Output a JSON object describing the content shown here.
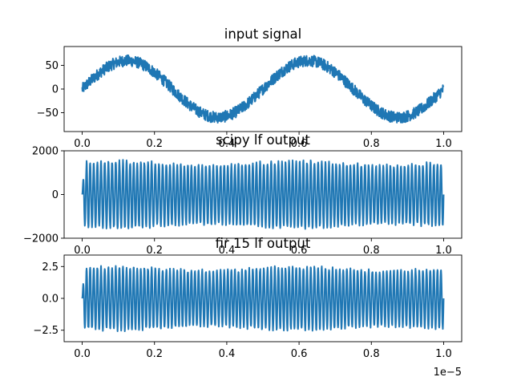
{
  "figure": {
    "background": "#ffffff",
    "line_color": "#1f77b4"
  },
  "chart_data": [
    {
      "type": "line",
      "title": "input signal",
      "xlim": [
        -2e-07,
        1.0222e-06
      ],
      "ylim": [
        -90,
        90
      ],
      "xticks": [
        0.0,
        0.2,
        0.4,
        0.6,
        0.8,
        1.0
      ],
      "xtick_labels": [
        "0.0",
        "0.2",
        "0.4",
        "0.6",
        "0.8",
        "1.0"
      ],
      "yticks": [
        -50,
        0,
        50
      ],
      "ytick_labels": [
        "−50",
        "0",
        "50"
      ],
      "x_scale_label": "",
      "series": [
        {
          "signal": "noisy_sine",
          "cycles": 2,
          "amplitude": 60,
          "noise_amplitude": 20,
          "x_range_scaled": [
            0.0,
            1.0
          ]
        }
      ]
    },
    {
      "type": "line",
      "title": "scipy lf output",
      "ylim": [
        -2000,
        2000
      ],
      "xticks": [
        0.0,
        0.2,
        0.4,
        0.6,
        0.8,
        1.0
      ],
      "xtick_labels": [
        "0.0",
        "0.2",
        "0.4",
        "0.6",
        "0.8",
        "1.0"
      ],
      "yticks": [
        -2000,
        0,
        2000
      ],
      "ytick_labels": [
        "−2000",
        "0",
        "2000"
      ],
      "x_scale_label": "",
      "series": [
        {
          "signal": "dense_oscillation",
          "carrier_cycles": 100,
          "amplitude": 1600,
          "envelope_variation": 0.12,
          "x_range_scaled": [
            0.0,
            1.0
          ]
        }
      ]
    },
    {
      "type": "line",
      "title": "fir 15 lf output",
      "ylim": [
        -3.4,
        3.4
      ],
      "xticks": [
        0.0,
        0.2,
        0.4,
        0.6,
        0.8,
        1.0
      ],
      "xtick_labels": [
        "0.0",
        "0.2",
        "0.4",
        "0.6",
        "0.8",
        "1.0"
      ],
      "yticks": [
        -2.5,
        0.0,
        2.5
      ],
      "ytick_labels": [
        "−2.5",
        "0.0",
        "2.5"
      ],
      "x_scale_label": "1e−5",
      "series": [
        {
          "signal": "dense_oscillation",
          "carrier_cycles": 100,
          "amplitude": 2.6,
          "envelope_variation": 0.12,
          "x_range_scaled": [
            0.0,
            1.0
          ]
        }
      ]
    }
  ]
}
